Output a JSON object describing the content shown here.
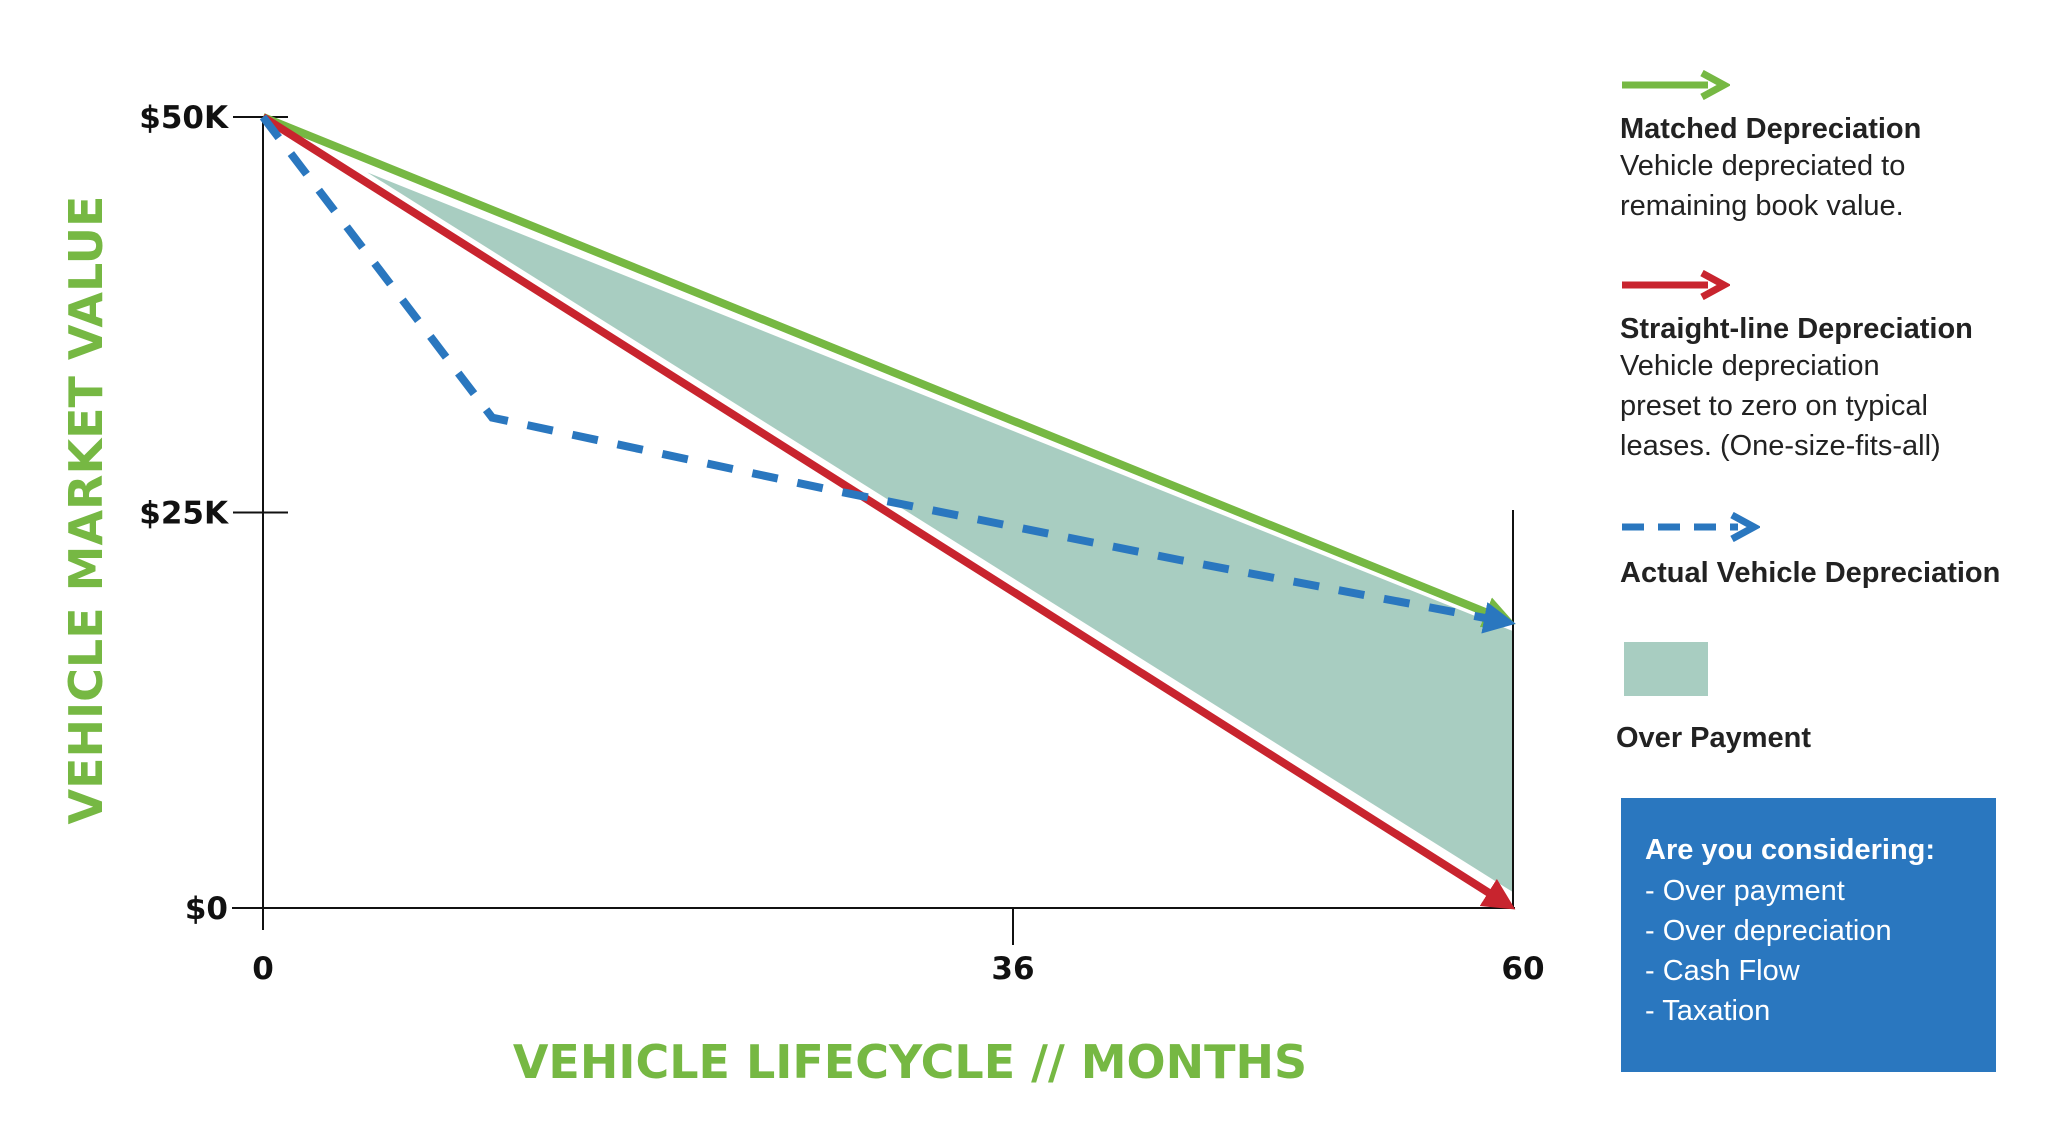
{
  "colors": {
    "green": "#76b843",
    "red": "#c8242e",
    "blue": "#2a77bf",
    "fill": "#a8cdc1",
    "axis": "#111111"
  },
  "chart_data": {
    "type": "line",
    "xlabel": "VEHICLE LIFECYCLE // MONTHS",
    "ylabel": "VEHICLE MARKET VALUE",
    "xlim": [
      0,
      60
    ],
    "ylim": [
      0,
      50000
    ],
    "x_ticks": [
      {
        "value": 0,
        "label": "0"
      },
      {
        "value": 36,
        "label": "36"
      },
      {
        "value": 60,
        "label": "60"
      }
    ],
    "y_ticks": [
      {
        "value": 0,
        "label": "$0"
      },
      {
        "value": 25000,
        "label": "$25K"
      },
      {
        "value": 50000,
        "label": "$50K"
      }
    ],
    "series": [
      {
        "name": "Matched Depreciation",
        "style": "solid",
        "color": "#76b843",
        "points": [
          [
            0,
            50000
          ],
          [
            60,
            18000
          ]
        ]
      },
      {
        "name": "Straight-line Depreciation",
        "style": "solid",
        "color": "#c8242e",
        "points": [
          [
            0,
            50000
          ],
          [
            60,
            0
          ]
        ]
      },
      {
        "name": "Actual Vehicle Depreciation",
        "style": "dashed",
        "color": "#2a77bf",
        "points": [
          [
            0,
            50000
          ],
          [
            11,
            31000
          ],
          [
            27,
            26500
          ],
          [
            44,
            22000
          ],
          [
            60,
            18000
          ]
        ]
      }
    ],
    "area": {
      "name": "Over Payment",
      "color": "#a8cdc1",
      "polygon": [
        [
          5,
          46500
        ],
        [
          60,
          17500
        ],
        [
          60,
          1000
        ]
      ]
    },
    "grid": false,
    "legend_position": "right"
  },
  "legend": {
    "matched_title": "Matched Depreciation",
    "matched_desc": "Vehicle depreciated to\nremaining book value.",
    "straight_title": "Straight-line Depreciation",
    "straight_desc": "Vehicle depreciation\npreset to zero on typical\nleases. (One-size-fits-all)",
    "actual_title": "Actual Vehicle Depreciation",
    "overpay_title": "Over Payment"
  },
  "callout": {
    "title": "Are you considering:",
    "items": [
      "- Over payment",
      "- Over depreciation",
      "- Cash Flow",
      "- Taxation"
    ]
  }
}
